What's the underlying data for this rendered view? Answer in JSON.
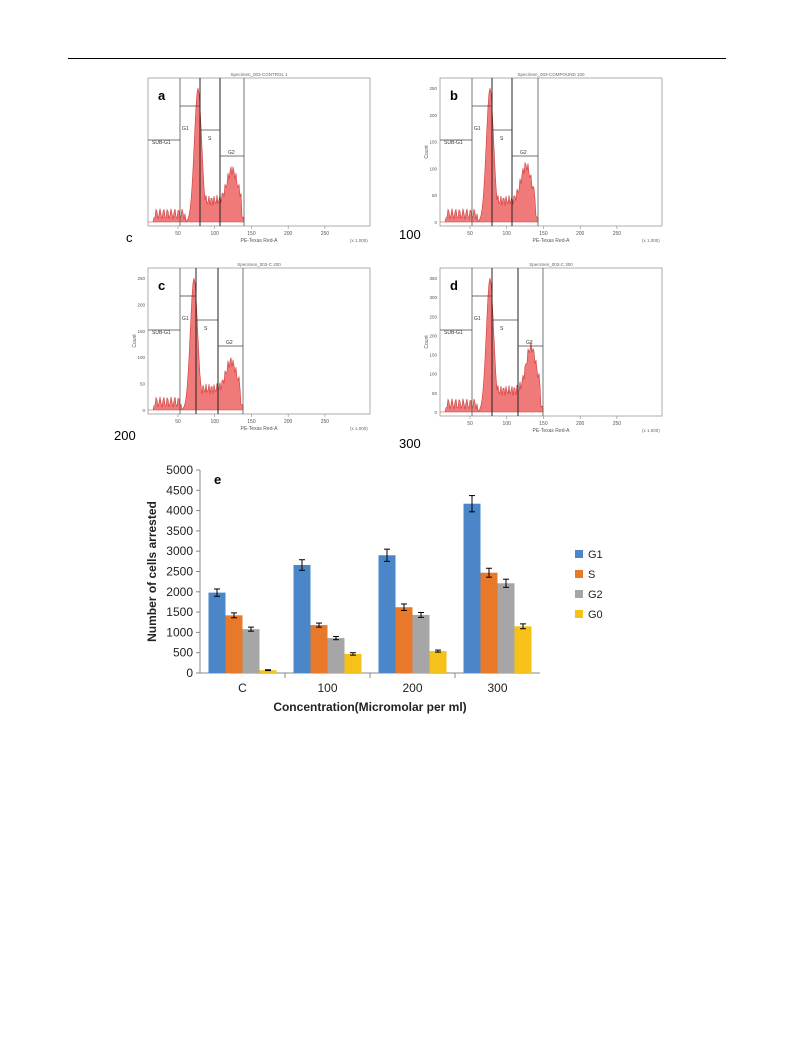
{
  "panels": [
    {
      "id": "a",
      "letter": "a",
      "specimen": "Specimen_003-CONTROL 1",
      "corner": "c",
      "xlabel": "PE-Texas Red-A",
      "ylabel": "",
      "xunit": "(x 1,000)",
      "xticks": [
        "50",
        "100",
        "150",
        "200",
        "250"
      ],
      "yticks": [],
      "gates": [
        "SUB-G1",
        "G1",
        "S",
        "G2"
      ]
    },
    {
      "id": "b",
      "letter": "b",
      "specimen": "Specimen_003-COMPOUND 100",
      "corner": "100",
      "xlabel": "PE-Texas Red-A",
      "ylabel": "Count",
      "xunit": "(x 1,000)",
      "xticks": [
        "50",
        "100",
        "150",
        "200",
        "250"
      ],
      "yticks": [
        "0",
        "50",
        "100",
        "150",
        "200",
        "250"
      ],
      "gates": [
        "SUB-G1",
        "G1",
        "S",
        "G2"
      ]
    },
    {
      "id": "c",
      "letter": "c",
      "specimen": "Specimen_003-C 200",
      "corner": "200",
      "xlabel": "PE-Texas Red-A",
      "ylabel": "Count",
      "xunit": "(x 1,000)",
      "xticks": [
        "50",
        "100",
        "150",
        "200",
        "250"
      ],
      "yticks": [
        "0",
        "50",
        "100",
        "150",
        "200",
        "250"
      ],
      "gates": [
        "SUB-G1",
        "G1",
        "S",
        "G2"
      ]
    },
    {
      "id": "d",
      "letter": "d",
      "specimen": "Specimen_003-C 300",
      "corner": "300",
      "xlabel": "PE-Texas Red-A",
      "ylabel": "Count",
      "xunit": "(x 1,000)",
      "xticks": [
        "50",
        "100",
        "150",
        "200",
        "250"
      ],
      "yticks": [
        "0",
        "50",
        "100",
        "150",
        "200",
        "250",
        "300",
        "350"
      ],
      "gates": [
        "SUB-G1",
        "G1",
        "S",
        "G2"
      ]
    }
  ],
  "chart_data": {
    "type": "bar",
    "panel_letter": "e",
    "title": "",
    "categories": [
      "C",
      "100",
      "200",
      "300"
    ],
    "xlabel": "Concentration(Micromolar per ml)",
    "ylabel": "Number of cells arrested",
    "ylim": [
      0,
      5000
    ],
    "yticks": [
      "0",
      "500",
      "1000",
      "1500",
      "2000",
      "2500",
      "3000",
      "3500",
      "4000",
      "4500",
      "5000"
    ],
    "grid": false,
    "legend_position": "right",
    "series": [
      {
        "name": "G1",
        "color": "#4a86c8",
        "values": [
          1980,
          2660,
          2900,
          4170
        ],
        "errors": [
          90,
          130,
          150,
          200
        ]
      },
      {
        "name": "S",
        "color": "#e8782a",
        "values": [
          1420,
          1180,
          1620,
          2470
        ],
        "errors": [
          60,
          50,
          80,
          110
        ]
      },
      {
        "name": "G2",
        "color": "#a6a6a6",
        "values": [
          1080,
          860,
          1430,
          2210
        ],
        "errors": [
          50,
          40,
          60,
          100
        ]
      },
      {
        "name": "G0",
        "color": "#f6c21a",
        "values": [
          70,
          470,
          540,
          1150
        ],
        "errors": [
          10,
          30,
          25,
          60
        ]
      }
    ]
  }
}
